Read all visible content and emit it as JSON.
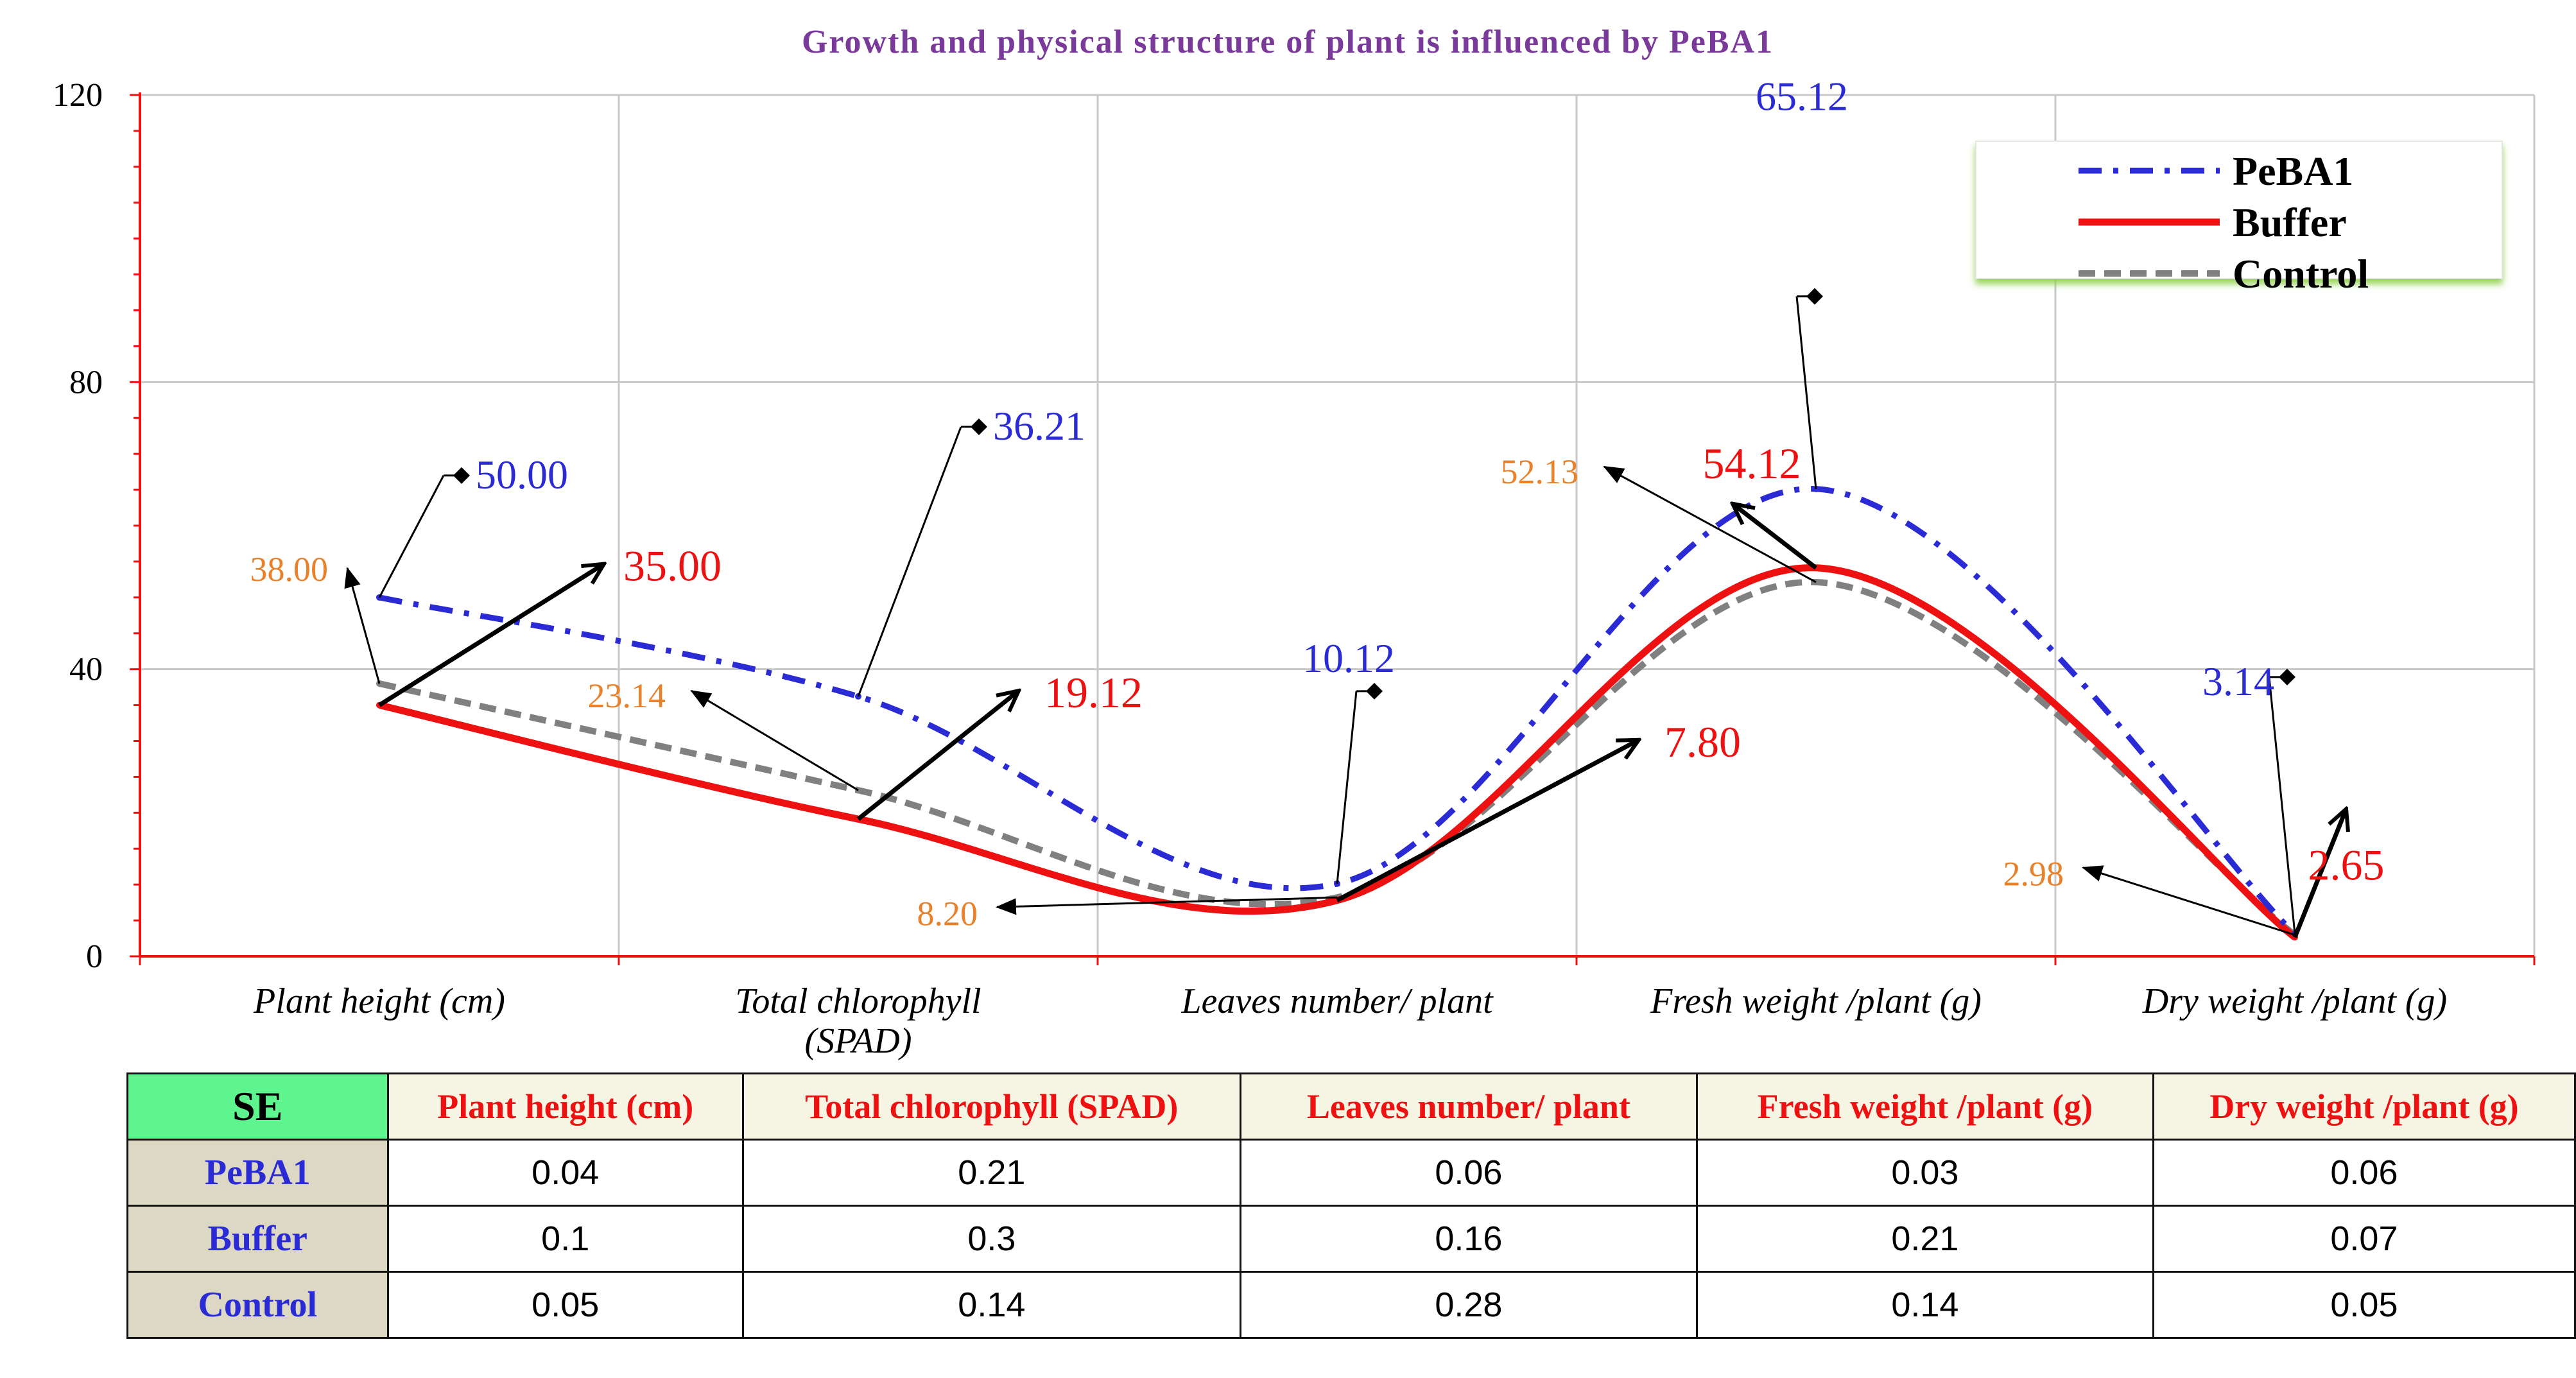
{
  "chart_data": {
    "type": "line",
    "title": "Growth and physical structure of plant is influenced by PeBA1",
    "categories": [
      "Plant height (cm)",
      "Total chlorophyll (SPAD)",
      "Leaves number/ plant",
      "Fresh weight /plant (g)",
      "Dry weight /plant (g)"
    ],
    "category_lines": [
      [
        "Plant height (cm)"
      ],
      [
        "Total chlorophyll",
        "(SPAD)"
      ],
      [
        "Leaves number/ plant"
      ],
      [
        "Fresh weight /plant (g)"
      ],
      [
        "Dry weight /plant (g)"
      ]
    ],
    "ylim": [
      0,
      120
    ],
    "yticks": [
      0,
      40,
      80,
      120
    ],
    "xlabel": "",
    "ylabel": "",
    "series": [
      {
        "name": "PeBA1",
        "values": [
          50.0,
          36.21,
          10.12,
          65.12,
          3.14
        ],
        "labels": [
          "50.00",
          "36.21",
          "10.12",
          "65.12",
          "3.14"
        ],
        "color": "#2b2bd6",
        "style": "dashdot"
      },
      {
        "name": "Buffer",
        "values": [
          35.0,
          19.12,
          7.8,
          54.12,
          2.65
        ],
        "labels": [
          "35.00",
          "19.12",
          "7.80",
          "54.12",
          "2.65"
        ],
        "color": "#ee1111",
        "style": "solid"
      },
      {
        "name": "Control",
        "values": [
          38.0,
          23.14,
          8.2,
          52.13,
          2.98
        ],
        "labels": [
          "38.00",
          "23.14",
          "8.20",
          "52.13",
          "2.98"
        ],
        "color": "#808080",
        "style": "dashed",
        "label_color": "#e8812a"
      }
    ],
    "legend": "top-right"
  },
  "se_table": {
    "corner": "SE",
    "headers": [
      "Plant height (cm)",
      "Total chlorophyll (SPAD)",
      "Leaves number/ plant",
      "Fresh weight /plant (g)",
      "Dry weight /plant (g)"
    ],
    "rows": [
      {
        "name": "PeBA1",
        "values": [
          "0.04",
          "0.21",
          "0.06",
          "0.03",
          "0.06"
        ]
      },
      {
        "name": "Buffer",
        "values": [
          "0.1",
          "0.3",
          "0.16",
          "0.21",
          "0.07"
        ]
      },
      {
        "name": "Control",
        "values": [
          "0.05",
          "0.14",
          "0.28",
          "0.14",
          "0.05"
        ]
      }
    ]
  },
  "colors": {
    "axis": "#ee1111",
    "grid": "#c8c8c8",
    "title": "#7a3a9a",
    "legend_shadow": "#8fd24a"
  }
}
